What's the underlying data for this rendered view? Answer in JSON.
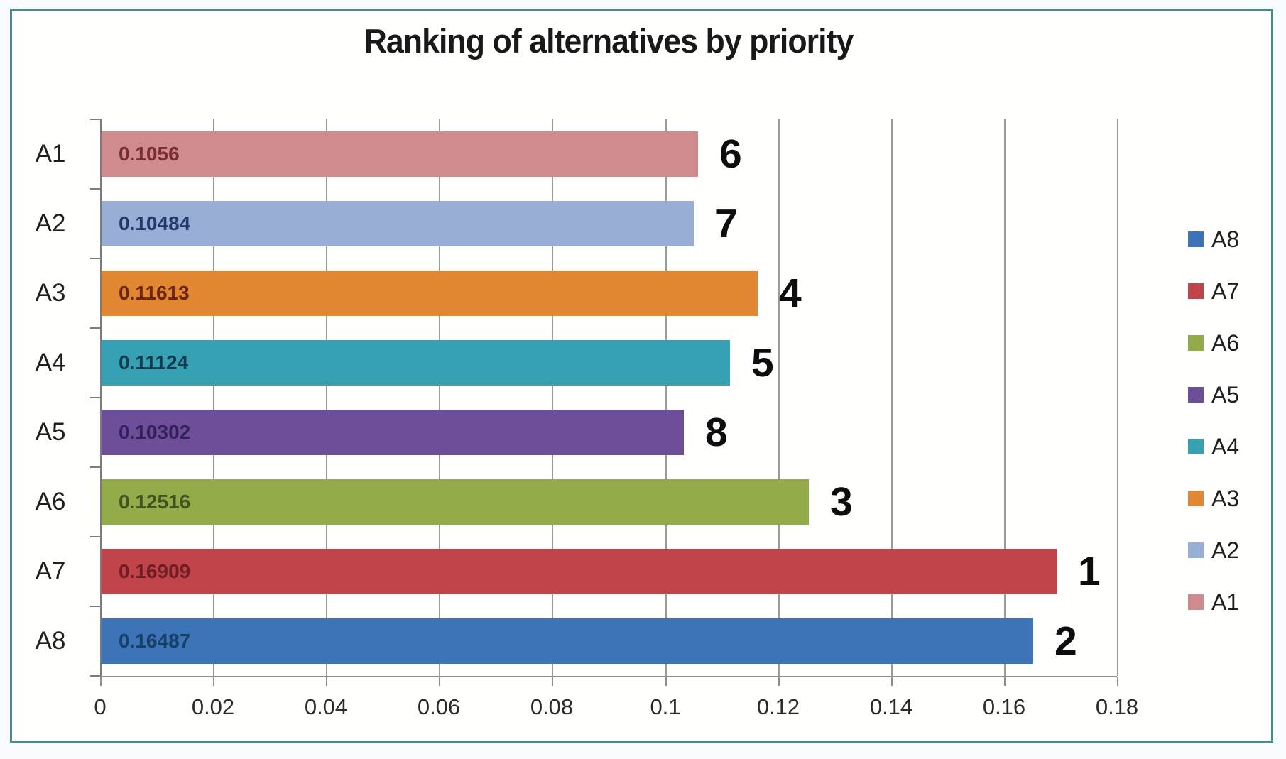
{
  "chart_data": {
    "type": "bar",
    "orientation": "horizontal",
    "title": "Ranking of alternatives by priority",
    "categories": [
      "A1",
      "A2",
      "A3",
      "A4",
      "A5",
      "A6",
      "A7",
      "A8"
    ],
    "values": [
      0.1056,
      0.10484,
      0.11613,
      0.11124,
      0.10302,
      0.12516,
      0.16909,
      0.16487
    ],
    "value_labels": [
      "0.1056",
      "0.10484",
      "0.11613",
      "0.11124",
      "0.10302",
      "0.12516",
      "0.16909",
      "0.16487"
    ],
    "ranks": [
      "6",
      "7",
      "4",
      "5",
      "8",
      "3",
      "1",
      "2"
    ],
    "bar_colors": [
      "#cf8b8e",
      "#98aed6",
      "#e28731",
      "#35a1b2",
      "#6d4f99",
      "#94ab4a",
      "#c04449",
      "#3d74b7"
    ],
    "value_label_colors": [
      "#7a2e33",
      "#243a6b",
      "#6b2414",
      "#123a52",
      "#33205c",
      "#3f5420",
      "#6f1f24",
      "#173f68"
    ],
    "x_ticks": [
      "0",
      "0.02",
      "0.04",
      "0.06",
      "0.08",
      "0.1",
      "0.12",
      "0.14",
      "0.16",
      "0.18"
    ],
    "xlim": [
      0,
      0.18
    ],
    "x_tick_step": 0.02,
    "grid": "vertical",
    "legend_position": "right",
    "legend": [
      {
        "label": "A8",
        "color": "#3d74b7"
      },
      {
        "label": "A7",
        "color": "#c04449"
      },
      {
        "label": "A6",
        "color": "#94ab4a"
      },
      {
        "label": "A5",
        "color": "#6d4f99"
      },
      {
        "label": "A4",
        "color": "#35a1b2"
      },
      {
        "label": "A3",
        "color": "#e28731"
      },
      {
        "label": "A2",
        "color": "#98aed6"
      },
      {
        "label": "A1",
        "color": "#cf8b8e"
      }
    ]
  },
  "style": {
    "frame_color": "#4c8a88",
    "grid_color": "#9a9a9a",
    "axis_color": "#7b7b7b",
    "text_color": "#1f1f1f",
    "rank_color": "#0d0d0d",
    "plot_background": "#fffffe",
    "outer_background": "#f8fbfd"
  }
}
